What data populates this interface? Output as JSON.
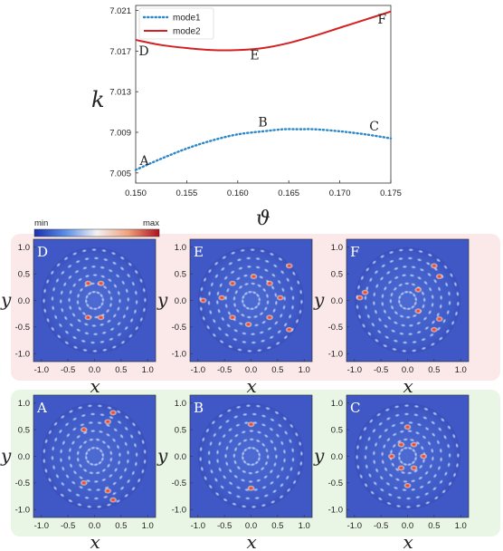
{
  "chart_data": [
    {
      "type": "line",
      "xlabel": "ϑ",
      "ylabel": "k",
      "xlim": [
        0.15,
        0.175
      ],
      "ylim": [
        7.004,
        7.0215
      ],
      "xticks": [
        "0.150",
        "0.155",
        "0.160",
        "0.165",
        "0.170",
        "0.175"
      ],
      "yticks": [
        "7.005",
        "7.009",
        "7.013",
        "7.017",
        "7.021"
      ],
      "legend_position": "top-left",
      "grid": false,
      "series": [
        {
          "name": "mode1",
          "style": "dotted",
          "color": "#2a87c8",
          "x": [
            0.15,
            0.1525,
            0.155,
            0.1575,
            0.16,
            0.1625,
            0.1645,
            0.166,
            0.1675,
            0.17,
            0.1725,
            0.175
          ],
          "y": [
            7.0053,
            7.0064,
            7.0074,
            7.0082,
            7.0088,
            7.0091,
            7.0093,
            7.0093,
            7.0093,
            7.0091,
            7.0088,
            7.0084
          ]
        },
        {
          "name": "mode2",
          "style": "solid",
          "color": "#d42020",
          "x": [
            0.15,
            0.1525,
            0.155,
            0.1575,
            0.16,
            0.1625,
            0.165,
            0.1675,
            0.17,
            0.1725,
            0.175
          ],
          "y": [
            7.0181,
            7.0176,
            7.0173,
            7.0171,
            7.0171,
            7.0173,
            7.0178,
            7.0185,
            7.0193,
            7.0201,
            7.0209
          ]
        }
      ],
      "annotations": [
        {
          "text": "A",
          "x": 0.1504,
          "y": 7.0058
        },
        {
          "text": "B",
          "x": 0.162,
          "y": 7.0096
        },
        {
          "text": "C",
          "x": 0.1729,
          "y": 7.0092
        },
        {
          "text": "D",
          "x": 0.1503,
          "y": 7.0166
        },
        {
          "text": "E",
          "x": 0.1612,
          "y": 7.0162
        },
        {
          "text": "F",
          "x": 0.1737,
          "y": 7.0197
        }
      ]
    },
    {
      "type": "heatmap",
      "colorbar": {
        "min_label": "min",
        "max_label": "max"
      },
      "xlabel": "x",
      "ylabel": "y",
      "xticks": [
        "-1.0",
        "-0.5",
        "0.0",
        "0.5",
        "1.0"
      ],
      "yticks": [
        "1.0",
        "0.5",
        "0.0",
        "-0.5",
        "-1.0"
      ],
      "xlim": [
        -1.15,
        1.15
      ],
      "ylim": [
        -1.15,
        1.15
      ],
      "panels": [
        {
          "label": "D",
          "hotspots": [
            [
              0.12,
              0.32
            ],
            [
              -0.12,
              0.32
            ],
            [
              0.12,
              -0.32
            ],
            [
              -0.12,
              -0.32
            ]
          ]
        },
        {
          "label": "E",
          "hotspots": [
            [
              -0.35,
              0.32
            ],
            [
              -0.55,
              0.05
            ],
            [
              -0.35,
              -0.32
            ],
            [
              0.35,
              0.32
            ],
            [
              0.55,
              0.05
            ],
            [
              0.35,
              -0.32
            ],
            [
              0.05,
              0.45
            ],
            [
              -0.05,
              -0.45
            ],
            [
              0.72,
              0.65
            ],
            [
              0.72,
              -0.55
            ],
            [
              -0.9,
              0.0
            ]
          ]
        },
        {
          "label": "F",
          "hotspots": [
            [
              -0.9,
              0.05
            ],
            [
              -0.8,
              0.15
            ],
            [
              0.5,
              0.65
            ],
            [
              0.6,
              0.45
            ],
            [
              0.5,
              -0.55
            ],
            [
              0.6,
              -0.35
            ],
            [
              0.2,
              0.2
            ],
            [
              0.2,
              -0.2
            ]
          ]
        },
        {
          "label": "A",
          "hotspots": [
            [
              0.35,
              0.82
            ],
            [
              0.25,
              0.65
            ],
            [
              0.35,
              -0.82
            ],
            [
              0.25,
              -0.65
            ],
            [
              -0.2,
              0.5
            ],
            [
              -0.2,
              -0.5
            ]
          ]
        },
        {
          "label": "B",
          "hotspots": [
            [
              0.0,
              0.6
            ],
            [
              0.0,
              -0.6
            ]
          ]
        },
        {
          "label": "C",
          "hotspots": [
            [
              0.12,
              0.22
            ],
            [
              -0.12,
              0.22
            ],
            [
              0.12,
              -0.22
            ],
            [
              -0.12,
              -0.22
            ],
            [
              0.0,
              0.55
            ],
            [
              0.0,
              -0.55
            ],
            [
              0.3,
              0.0
            ],
            [
              -0.3,
              0.0
            ]
          ]
        }
      ]
    }
  ],
  "colors": {
    "top_row_bg": "#fbe9e9",
    "bottom_row_bg": "#e9f6e6",
    "field_bg": "#3f58c6",
    "hot": "#e0202a"
  }
}
